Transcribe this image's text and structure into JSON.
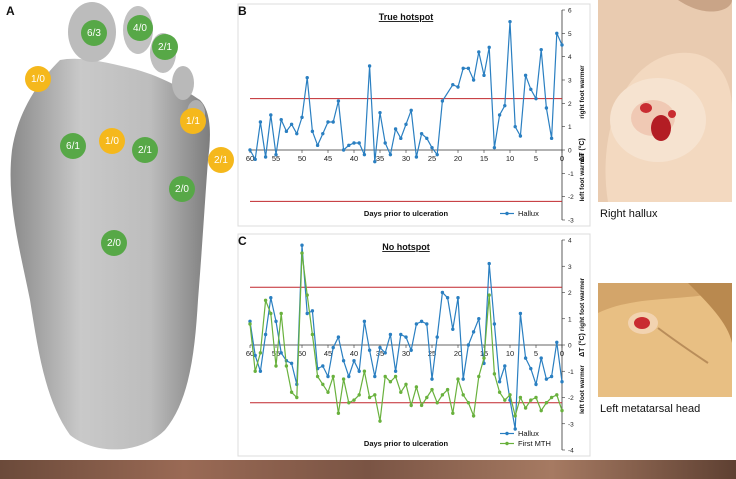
{
  "panels": {
    "a": "A",
    "b": "B",
    "c": "C"
  },
  "foot": {
    "badges": [
      {
        "label": "6/3",
        "color": "green",
        "x": 94,
        "y": 33
      },
      {
        "label": "4/0",
        "color": "green",
        "x": 140,
        "y": 28
      },
      {
        "label": "2/1",
        "color": "green",
        "x": 165,
        "y": 47
      },
      {
        "label": "1/0",
        "color": "orange",
        "x": 38,
        "y": 79
      },
      {
        "label": "1/1",
        "color": "orange",
        "x": 193,
        "y": 121
      },
      {
        "label": "6/1",
        "color": "green",
        "x": 73,
        "y": 146
      },
      {
        "label": "1/0",
        "color": "orange",
        "x": 112,
        "y": 141
      },
      {
        "label": "2/1",
        "color": "green",
        "x": 145,
        "y": 150
      },
      {
        "label": "2/1",
        "color": "orange",
        "x": 221,
        "y": 160
      },
      {
        "label": "2/0",
        "color": "green",
        "x": 182,
        "y": 189
      },
      {
        "label": "2/0",
        "color": "green",
        "x": 114,
        "y": 243
      }
    ]
  },
  "photos": {
    "right_caption": "Right hallux",
    "left_caption": "Left metatarsal head"
  },
  "chart_data": [
    {
      "type": "line",
      "title": "True hotspot",
      "xlabel": "Days prior to ulceration",
      "ylabel": "ΔT (°C)",
      "ylabel_upper": "right foot warmer",
      "ylabel_lower": "left foot warmer",
      "xlim": [
        60,
        0
      ],
      "ylim": [
        -3,
        6
      ],
      "xticks": [
        60,
        55,
        50,
        45,
        40,
        35,
        30,
        25,
        20,
        15,
        10,
        5,
        0
      ],
      "yticks": [
        -3,
        -2,
        -1,
        0,
        1,
        2,
        3,
        4,
        5,
        6
      ],
      "thresholds": [
        2.2,
        -2.2
      ],
      "legend": "bottom-right",
      "series": [
        {
          "name": "Hallux",
          "color": "#2a7fc1",
          "points": [
            [
              60,
              0
            ],
            [
              59,
              -0.4
            ],
            [
              58,
              1.2
            ],
            [
              57,
              -0.3
            ],
            [
              56,
              1.5
            ],
            [
              55,
              -0.2
            ],
            [
              54,
              1.3
            ],
            [
              53,
              0.8
            ],
            [
              52,
              1.1
            ],
            [
              51,
              0.7
            ],
            [
              50,
              1.4
            ],
            [
              49,
              3.1
            ],
            [
              48,
              0.8
            ],
            [
              47,
              0.2
            ],
            [
              46,
              0.7
            ],
            [
              45,
              1.2
            ],
            [
              44,
              1.2
            ],
            [
              43,
              2.1
            ],
            [
              42,
              0
            ],
            [
              41,
              0.2
            ],
            [
              40,
              0.3
            ],
            [
              39,
              0.3
            ],
            [
              38,
              -0.2
            ],
            [
              37,
              3.6
            ],
            [
              36,
              -0.5
            ],
            [
              35,
              1.6
            ],
            [
              34,
              0.3
            ],
            [
              33,
              -0.2
            ],
            [
              32,
              0.9
            ],
            [
              31,
              0.5
            ],
            [
              30,
              1.1
            ],
            [
              29,
              1.7
            ],
            [
              28,
              -0.3
            ],
            [
              27,
              0.7
            ],
            [
              26,
              0.5
            ],
            [
              25,
              0.1
            ],
            [
              24,
              -0.2
            ],
            [
              23,
              2.1
            ],
            [
              21,
              2.8
            ],
            [
              20,
              2.7
            ],
            [
              19,
              3.5
            ],
            [
              18,
              3.5
            ],
            [
              17,
              3.0
            ],
            [
              16,
              4.2
            ],
            [
              15,
              3.2
            ],
            [
              14,
              4.4
            ],
            [
              13,
              0.1
            ],
            [
              12,
              1.5
            ],
            [
              11,
              1.9
            ],
            [
              10,
              5.5
            ],
            [
              9,
              1.0
            ],
            [
              8,
              0.6
            ],
            [
              7,
              3.2
            ],
            [
              6,
              2.6
            ],
            [
              5,
              2.2
            ],
            [
              4,
              4.3
            ],
            [
              3,
              1.8
            ],
            [
              2,
              0.5
            ],
            [
              1,
              5.0
            ],
            [
              0,
              4.5
            ]
          ]
        }
      ]
    },
    {
      "type": "line",
      "title": "No hotspot",
      "xlabel": "Days prior to ulceration",
      "ylabel": "ΔT (°C)",
      "ylabel_upper": "right foot warmer",
      "ylabel_lower": "left foot warmer",
      "xlim": [
        60,
        0
      ],
      "ylim": [
        -4,
        4
      ],
      "xticks": [
        60,
        55,
        50,
        45,
        40,
        35,
        30,
        25,
        20,
        15,
        10,
        5,
        0
      ],
      "yticks": [
        -4,
        -3,
        -2,
        -1,
        0,
        1,
        2,
        3,
        4
      ],
      "thresholds": [
        2.2,
        -2.2
      ],
      "legend": "bottom-right",
      "series": [
        {
          "name": "Hallux",
          "color": "#2a7fc1",
          "points": [
            [
              60,
              0.9
            ],
            [
              59,
              -0.4
            ],
            [
              58,
              -1.0
            ],
            [
              57,
              0.4
            ],
            [
              56,
              1.8
            ],
            [
              55,
              0.9
            ],
            [
              54,
              -0.3
            ],
            [
              53,
              -0.6
            ],
            [
              52,
              -0.7
            ],
            [
              51,
              -1.5
            ],
            [
              50,
              3.8
            ],
            [
              49,
              1.2
            ],
            [
              48,
              1.3
            ],
            [
              47,
              -0.9
            ],
            [
              46,
              -0.8
            ],
            [
              45,
              -1.2
            ],
            [
              44,
              -0.1
            ],
            [
              43,
              0.3
            ],
            [
              42,
              -0.6
            ],
            [
              41,
              -1.2
            ],
            [
              40,
              -0.6
            ],
            [
              39,
              -1.0
            ],
            [
              38,
              0.9
            ],
            [
              37,
              -0.2
            ],
            [
              36,
              -1.2
            ],
            [
              35,
              -0.1
            ],
            [
              34,
              -0.3
            ],
            [
              33,
              0.4
            ],
            [
              32,
              -1.0
            ],
            [
              31,
              0.4
            ],
            [
              30,
              0.3
            ],
            [
              29,
              -0.2
            ],
            [
              28,
              0.8
            ],
            [
              27,
              0.9
            ],
            [
              26,
              0.8
            ],
            [
              25,
              -1.3
            ],
            [
              24,
              0.3
            ],
            [
              23,
              2.0
            ],
            [
              22,
              1.8
            ],
            [
              21,
              0.6
            ],
            [
              20,
              1.8
            ],
            [
              19,
              -1.3
            ],
            [
              18,
              0
            ],
            [
              17,
              0.5
            ],
            [
              16,
              1.0
            ],
            [
              15,
              -0.7
            ],
            [
              14,
              3.1
            ],
            [
              13,
              0.8
            ],
            [
              12,
              -1.4
            ],
            [
              11,
              -0.8
            ],
            [
              10,
              -2.1
            ],
            [
              9,
              -3.2
            ],
            [
              8,
              1.2
            ],
            [
              7,
              -0.5
            ],
            [
              6,
              -0.9
            ],
            [
              5,
              -1.5
            ],
            [
              4,
              -0.5
            ],
            [
              3,
              -1.3
            ],
            [
              2,
              -1.2
            ],
            [
              1,
              0.1
            ],
            [
              0,
              -1.4
            ]
          ]
        },
        {
          "name": "First MTH",
          "color": "#69b13d",
          "points": [
            [
              60,
              0.8
            ],
            [
              59,
              -1.0
            ],
            [
              58,
              -0.3
            ],
            [
              57,
              1.7
            ],
            [
              56,
              1.2
            ],
            [
              55,
              -0.8
            ],
            [
              54,
              1.2
            ],
            [
              53,
              -0.8
            ],
            [
              52,
              -1.8
            ],
            [
              51,
              -2.0
            ],
            [
              50,
              3.5
            ],
            [
              49,
              1.9
            ],
            [
              48,
              0.4
            ],
            [
              47,
              -1.2
            ],
            [
              46,
              -1.5
            ],
            [
              45,
              -1.8
            ],
            [
              44,
              -1.2
            ],
            [
              43,
              -2.6
            ],
            [
              42,
              -1.3
            ],
            [
              41,
              -2.2
            ],
            [
              40,
              -2.1
            ],
            [
              39,
              -1.9
            ],
            [
              38,
              -1.0
            ],
            [
              37,
              -2.0
            ],
            [
              36,
              -1.9
            ],
            [
              35,
              -2.9
            ],
            [
              34,
              -1.2
            ],
            [
              33,
              -1.4
            ],
            [
              32,
              -1.2
            ],
            [
              31,
              -1.8
            ],
            [
              30,
              -1.5
            ],
            [
              29,
              -2.3
            ],
            [
              28,
              -1.6
            ],
            [
              27,
              -2.3
            ],
            [
              26,
              -2.0
            ],
            [
              25,
              -1.7
            ],
            [
              24,
              -2.2
            ],
            [
              23,
              -1.9
            ],
            [
              22,
              -1.7
            ],
            [
              21,
              -2.6
            ],
            [
              20,
              -1.3
            ],
            [
              19,
              -1.9
            ],
            [
              18,
              -2.2
            ],
            [
              17,
              -2.7
            ],
            [
              16,
              -1.2
            ],
            [
              15,
              -0.5
            ],
            [
              14,
              1.9
            ],
            [
              13,
              -1.1
            ],
            [
              12,
              -1.8
            ],
            [
              11,
              -2.1
            ],
            [
              10,
              -1.9
            ],
            [
              9,
              -2.7
            ],
            [
              8,
              -2.0
            ],
            [
              7,
              -2.4
            ],
            [
              6,
              -2.1
            ],
            [
              5,
              -2.0
            ],
            [
              4,
              -2.5
            ],
            [
              3,
              -2.2
            ],
            [
              2,
              -2.0
            ],
            [
              1,
              -1.9
            ],
            [
              0,
              -2.5
            ]
          ]
        }
      ]
    }
  ]
}
